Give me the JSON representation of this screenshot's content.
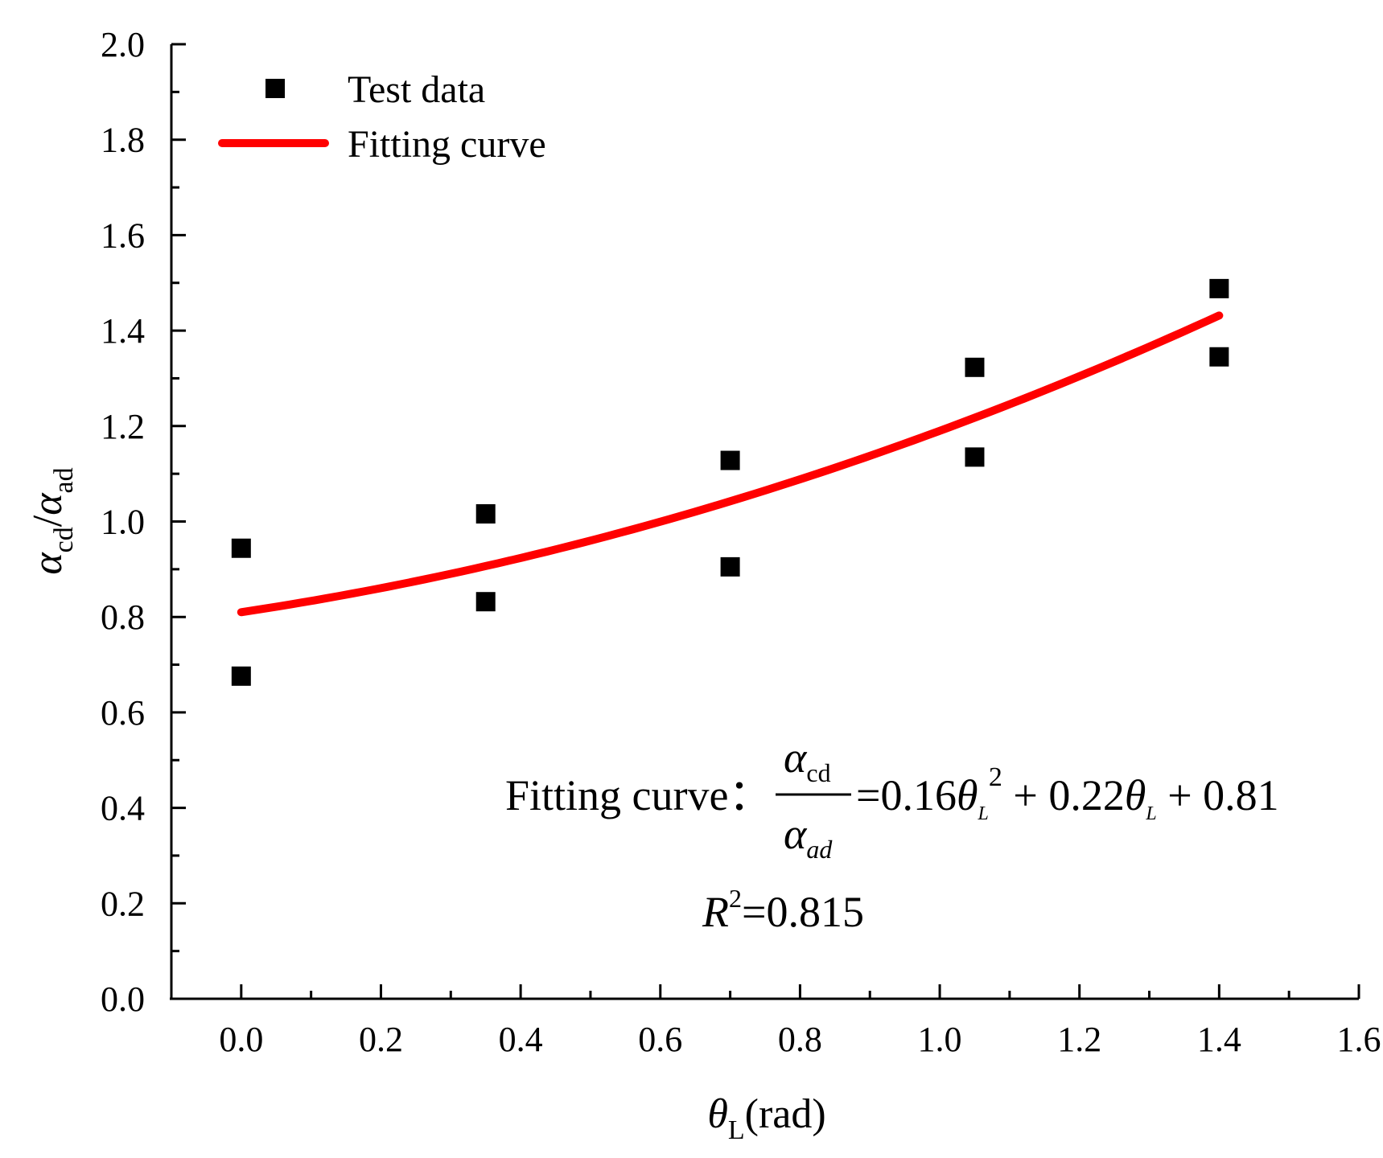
{
  "chart_data": {
    "type": "scatter",
    "title": "",
    "xlabel": {
      "symbol": "θ",
      "sub": "L",
      "unit": "(rad)"
    },
    "ylabel": {
      "num": "α",
      "num_sub": "cd",
      "slash": "/",
      "den": "α",
      "den_sub": "ad"
    },
    "xlim": [
      -0.1,
      1.6
    ],
    "ylim": [
      0.0,
      2.0
    ],
    "x_ticks": [
      "0.0",
      "0.2",
      "0.4",
      "0.6",
      "0.8",
      "1.0",
      "1.2",
      "1.4",
      "1.6"
    ],
    "y_ticks": [
      "0.0",
      "0.2",
      "0.4",
      "0.6",
      "0.8",
      "1.0",
      "1.2",
      "1.4",
      "1.6",
      "1.8",
      "2.0"
    ],
    "series": [
      {
        "name": "Test data",
        "kind": "scatter",
        "marker": "square",
        "color": "#000000",
        "points": [
          {
            "x": 0.0,
            "y": 0.944
          },
          {
            "x": 0.0,
            "y": 0.676
          },
          {
            "x": 0.35,
            "y": 1.016
          },
          {
            "x": 0.35,
            "y": 0.832
          },
          {
            "x": 0.7,
            "y": 1.128
          },
          {
            "x": 0.7,
            "y": 0.905
          },
          {
            "x": 1.05,
            "y": 1.323
          },
          {
            "x": 1.05,
            "y": 1.135
          },
          {
            "x": 1.4,
            "y": 1.488
          },
          {
            "x": 1.4,
            "y": 1.345
          }
        ]
      },
      {
        "name": "Fitting curve",
        "kind": "line",
        "color": "#ff0000",
        "coefficients": {
          "a": 0.16,
          "b": 0.22,
          "c": 0.81
        },
        "x_range": [
          0.0,
          1.4
        ]
      }
    ],
    "legend": {
      "position": "top-left",
      "entries": [
        "Test data",
        "Fitting curve"
      ]
    },
    "annotation": {
      "label": "Fitting curve",
      "colon": "：",
      "frac_num": "α",
      "frac_num_sub": "cd",
      "frac_den": "α",
      "frac_den_sub": "ad",
      "eq_prefix": "=0.16",
      "theta": "θ",
      "theta_sub": "L",
      "power": "2",
      "mid_term": " + 0.22",
      "tail_term": " + 0.81",
      "r2_symbol": "R",
      "r2_power": "2",
      "r2_value": "=0.815"
    }
  }
}
